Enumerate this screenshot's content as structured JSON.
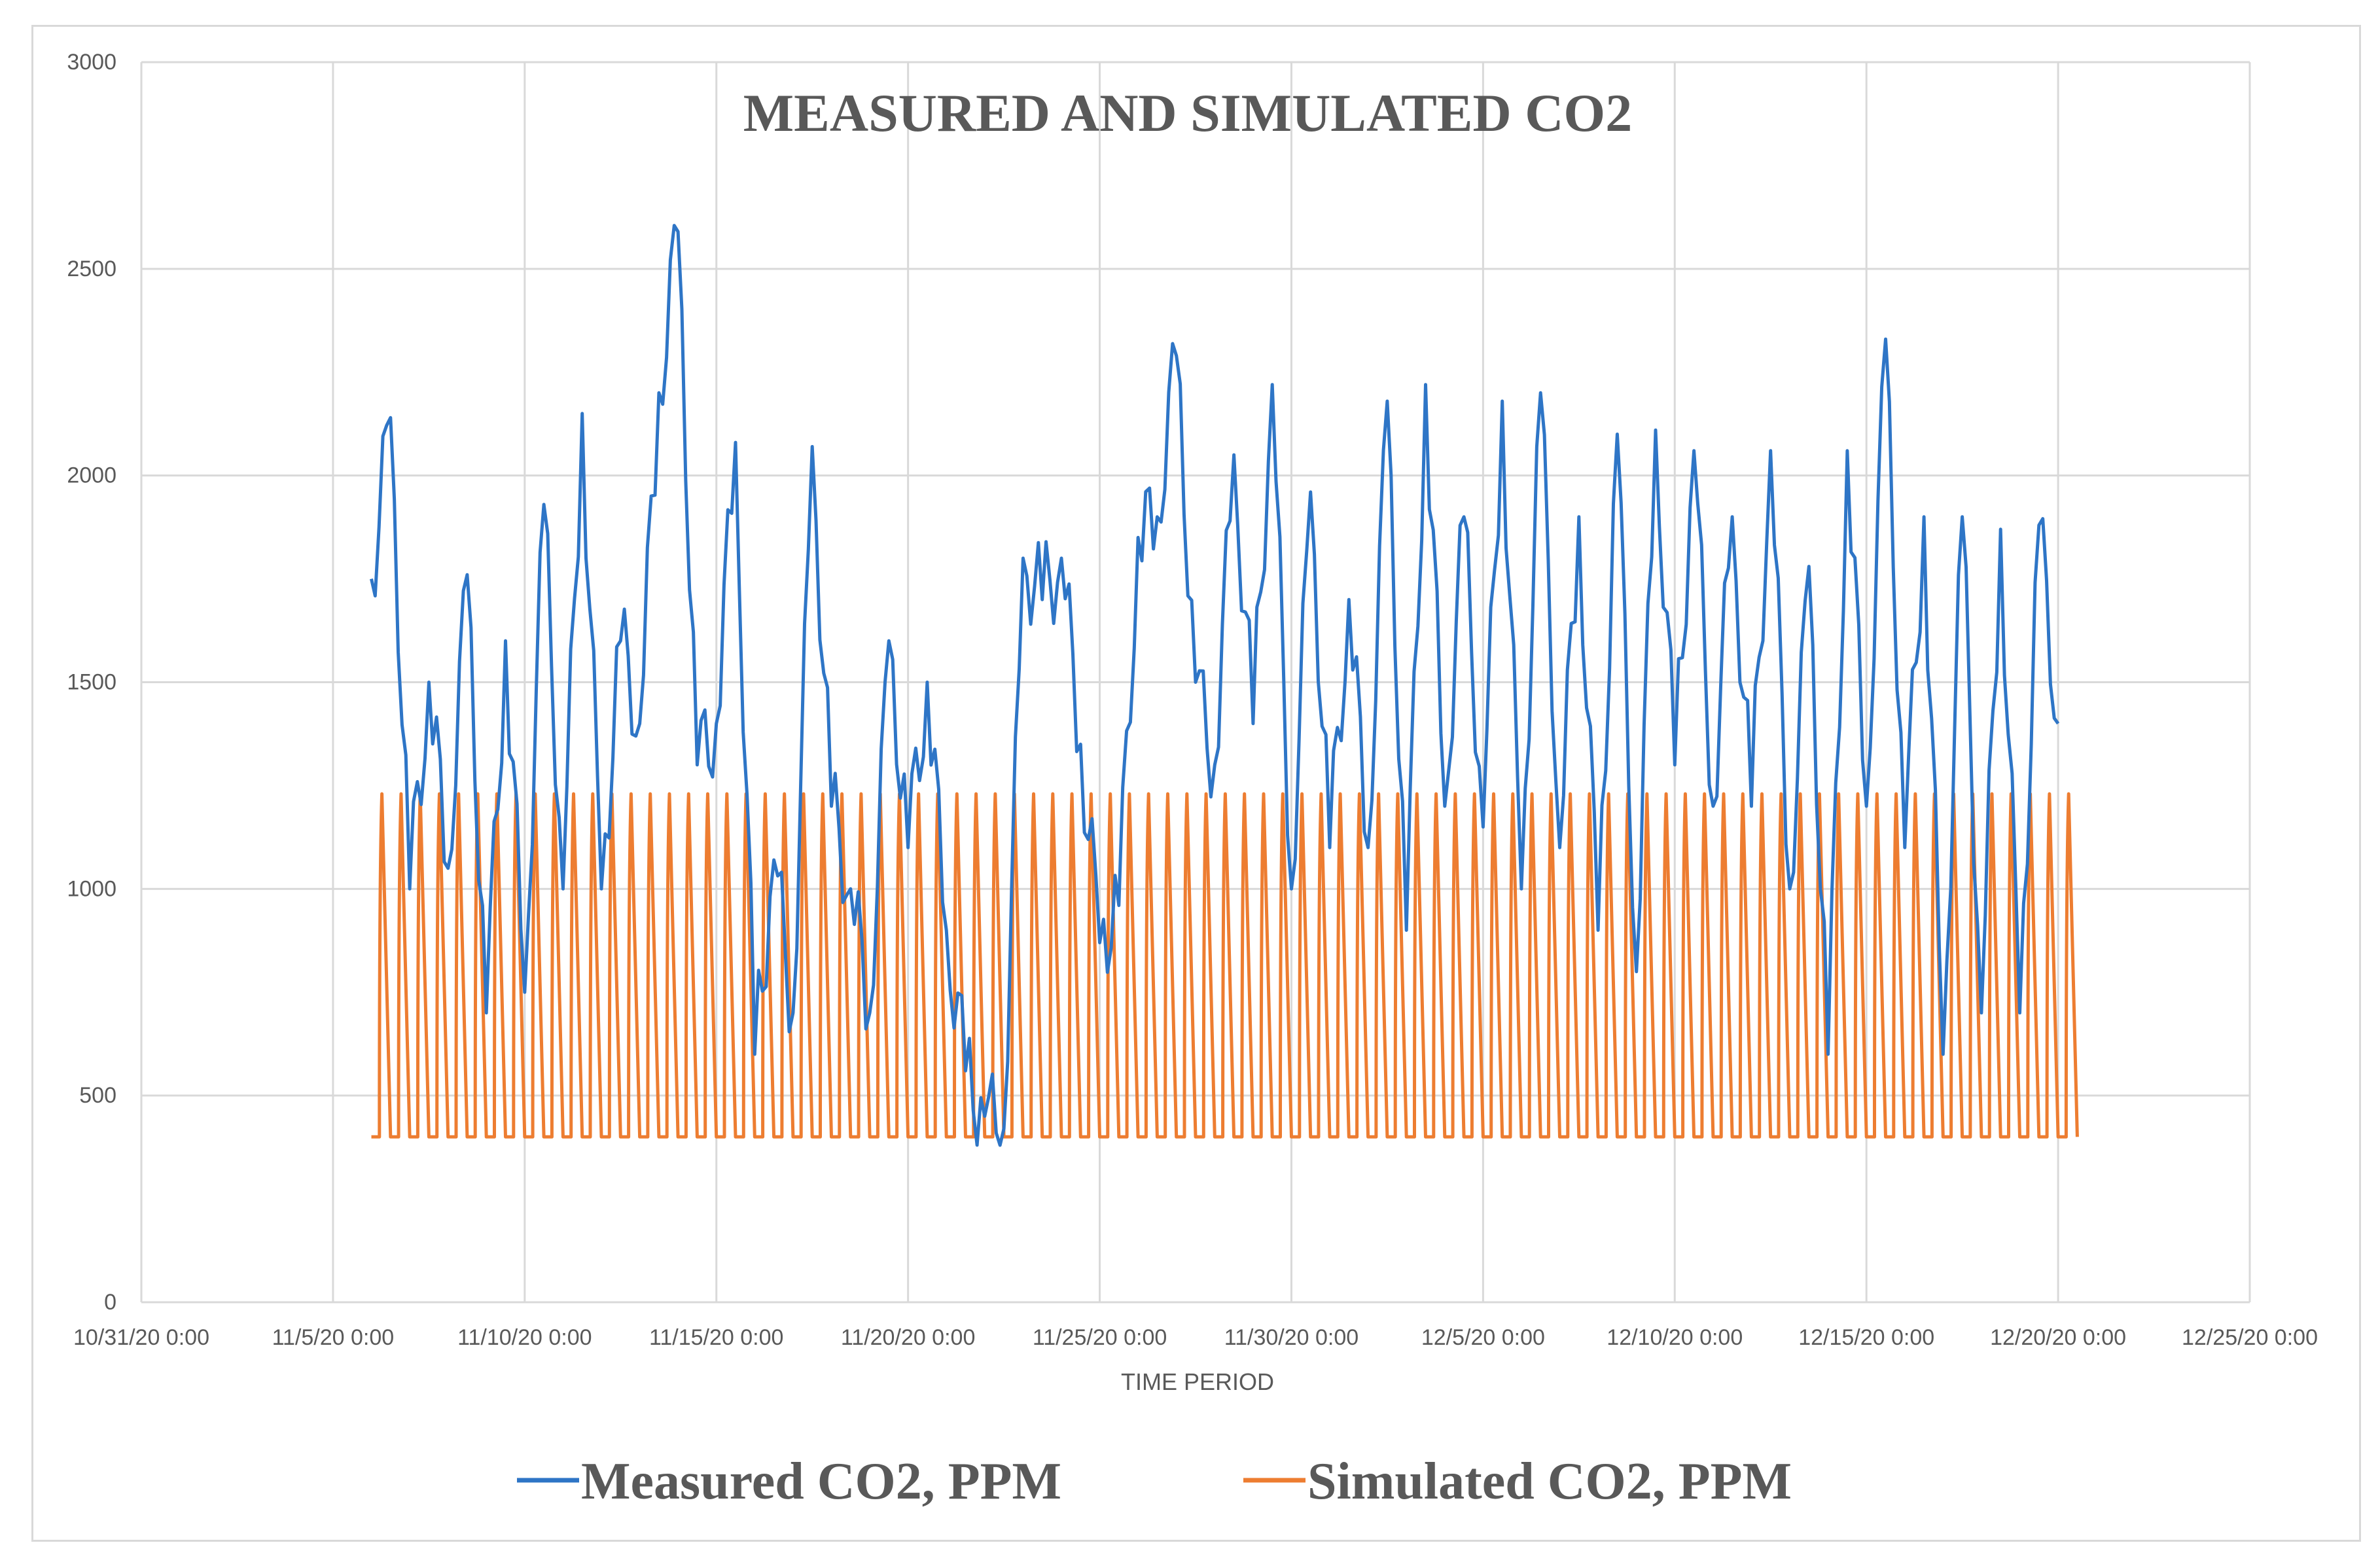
{
  "chart_data": {
    "type": "line",
    "title": "MEASURED AND SIMULATED CO2",
    "xlabel": "TIME PERIOD",
    "ylabel": "",
    "ylim": [
      0,
      3000
    ],
    "yticks": [
      0,
      500,
      1000,
      1500,
      2000,
      2500,
      3000
    ],
    "xlim": [
      "2020-10-31 00:00",
      "2020-12-25 00:00"
    ],
    "xticks": [
      "10/31/20 0:00",
      "11/5/20 0:00",
      "11/10/20 0:00",
      "11/15/20 0:00",
      "11/20/20 0:00",
      "11/25/20 0:00",
      "11/30/20 0:00",
      "12/5/20 0:00",
      "12/10/20 0:00",
      "12/15/20 0:00",
      "12/20/20 0:00",
      "12/25/20 0:00"
    ],
    "grid": true,
    "legend": "bottom",
    "series": [
      {
        "name": "Measured CO2, PPM",
        "color": "#2e75c6",
        "x": [
          "2020-11-06",
          "2020-11-06.5",
          "2020-11-07",
          "2020-11-07.5",
          "2020-11-08",
          "2020-11-08.5",
          "2020-11-09",
          "2020-11-09.5",
          "2020-11-10",
          "2020-11-10.5",
          "2020-11-11",
          "2020-11-11.5",
          "2020-11-12",
          "2020-11-12.5",
          "2020-11-13",
          "2020-11-13.5",
          "2020-11-14",
          "2020-11-14.5",
          "2020-11-15",
          "2020-11-15.5",
          "2020-11-16",
          "2020-11-16.5",
          "2020-11-17",
          "2020-11-17.5",
          "2020-11-18",
          "2020-11-18.5",
          "2020-11-19",
          "2020-11-19.5",
          "2020-11-20",
          "2020-11-20.5",
          "2020-11-21",
          "2020-11-21.5",
          "2020-11-22",
          "2020-11-22.5",
          "2020-11-23",
          "2020-11-23.5",
          "2020-11-24",
          "2020-11-24.5",
          "2020-11-25",
          "2020-11-25.5",
          "2020-11-26",
          "2020-11-26.5",
          "2020-11-27",
          "2020-11-27.5",
          "2020-11-28",
          "2020-11-28.5",
          "2020-11-29",
          "2020-11-29.5",
          "2020-11-30",
          "2020-11-30.5",
          "2020-12-01",
          "2020-12-01.5",
          "2020-12-02",
          "2020-12-02.5",
          "2020-12-03",
          "2020-12-03.5",
          "2020-12-04",
          "2020-12-04.5",
          "2020-12-05",
          "2020-12-05.5",
          "2020-12-06",
          "2020-12-06.5",
          "2020-12-07",
          "2020-12-07.5",
          "2020-12-08",
          "2020-12-08.5",
          "2020-12-09",
          "2020-12-09.5",
          "2020-12-10",
          "2020-12-10.5",
          "2020-12-11",
          "2020-12-11.5",
          "2020-12-12",
          "2020-12-12.5",
          "2020-12-13",
          "2020-12-13.5",
          "2020-12-14",
          "2020-12-14.5",
          "2020-12-15",
          "2020-12-15.5",
          "2020-12-16",
          "2020-12-16.5",
          "2020-12-17",
          "2020-12-17.5",
          "2020-12-18",
          "2020-12-18.5",
          "2020-12-19",
          "2020-12-19.5",
          "2020-12-20"
        ],
        "values": [
          1750,
          2140,
          1000,
          1500,
          1050,
          1760,
          700,
          1600,
          750,
          1930,
          1000,
          2150,
          1000,
          1600,
          1400,
          2200,
          2590,
          1300,
          1400,
          2080,
          600,
          1070,
          700,
          2070,
          1200,
          1000,
          700,
          1600,
          1100,
          1500,
          900,
          560,
          450,
          420,
          1800,
          1700,
          1800,
          1350,
          870,
          960,
          1850,
          1900,
          2290,
          1500,
          1300,
          2050,
          1400,
          2220,
          1000,
          1960,
          1100,
          1700,
          1100,
          2180,
          900,
          2220,
          1200,
          1900,
          1150,
          2180,
          1000,
          2200,
          1100,
          1900,
          900,
          2100,
          800,
          2110,
          1300,
          2060,
          1200,
          1900,
          1200,
          2060,
          1000,
          1780,
          600,
          2060,
          1200,
          2330,
          1100,
          1900,
          600,
          1900,
          700,
          1870,
          700,
          1880,
          1400
        ],
        "values_note": ""
      },
      {
        "name": "Simulated CO2, PPM",
        "color": "#ed7d31",
        "baseline": 400,
        "peak": 1230,
        "period_days": 0.5,
        "x": [],
        "values": []
      }
    ]
  }
}
